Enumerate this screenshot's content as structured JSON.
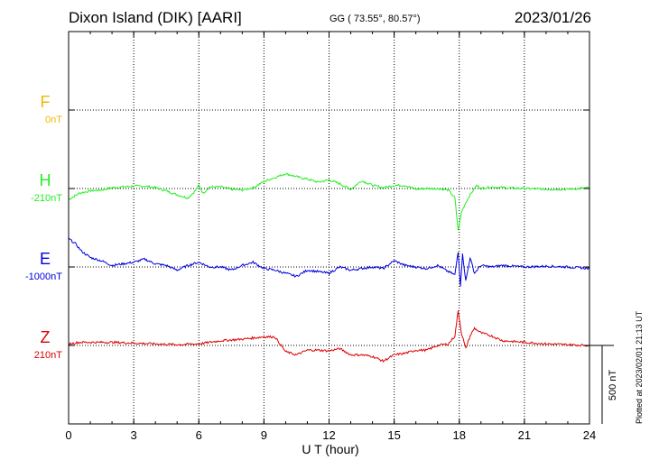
{
  "header": {
    "title": "Dixon Island (DIK)  [AARI]",
    "coordinates": "GG ( 73.55°,  80.57°)",
    "date": "2023/01/26"
  },
  "footer": {
    "plotted": "Plotted at 2023/02/01 21:13 UT"
  },
  "chart_data": {
    "type": "line",
    "xlabel": "U T (hour)",
    "xlim": [
      0,
      24
    ],
    "xticks": [
      "0",
      "3",
      "6",
      "9",
      "12",
      "15",
      "18",
      "21",
      "24"
    ],
    "ylim_nT": [
      -2,
      2
    ],
    "grid": true,
    "scale_bar": {
      "label": "500 nT",
      "value": 500
    },
    "series": [
      {
        "name": "F",
        "baseline_label": "0nT",
        "color": "#f2b705",
        "values": []
      },
      {
        "name": "H",
        "baseline_label": "-210nT",
        "color": "#22ee22",
        "x": [
          0,
          0.5,
          1,
          1.5,
          2,
          2.5,
          3,
          3.5,
          4,
          4.5,
          5,
          5.5,
          5.8,
          6,
          6.2,
          6.5,
          7,
          7.5,
          8,
          8.5,
          9,
          9.5,
          10,
          10.5,
          11,
          11.5,
          12,
          12.5,
          13,
          13.5,
          14,
          14.5,
          15,
          15.5,
          16,
          16.5,
          17,
          17.5,
          17.8,
          17.95,
          18.1,
          18.3,
          18.5,
          18.8,
          19,
          19.5,
          20,
          21,
          22,
          23,
          24
        ],
        "values": [
          -70,
          -30,
          -15,
          -10,
          5,
          10,
          15,
          15,
          5,
          -15,
          -40,
          -60,
          -20,
          20,
          -30,
          10,
          10,
          -5,
          -10,
          5,
          45,
          70,
          95,
          75,
          60,
          40,
          55,
          30,
          -5,
          50,
          20,
          5,
          20,
          20,
          -5,
          0,
          0,
          -10,
          -60,
          -270,
          -150,
          -90,
          -40,
          20,
          0,
          10,
          5,
          0,
          -5,
          -5,
          5
        ]
      },
      {
        "name": "E",
        "baseline_label": "-1000nT",
        "color": "#0000dd",
        "x": [
          0,
          0.3,
          0.6,
          1,
          1.5,
          2,
          2.5,
          3,
          3.5,
          4,
          4.5,
          5,
          5.5,
          6,
          6.5,
          7,
          7.5,
          8,
          8.5,
          9,
          9.5,
          10,
          10.5,
          11,
          11.5,
          12,
          12.5,
          13,
          13.5,
          14,
          14.5,
          15,
          15.5,
          16,
          16.5,
          17,
          17.5,
          17.8,
          17.95,
          18.05,
          18.15,
          18.3,
          18.5,
          18.7,
          19,
          19.5,
          20,
          21,
          22,
          23,
          24
        ],
        "values": [
          180,
          150,
          100,
          60,
          40,
          10,
          20,
          30,
          50,
          20,
          10,
          -20,
          10,
          30,
          0,
          0,
          -20,
          10,
          30,
          -10,
          -20,
          -40,
          -60,
          -20,
          -30,
          -40,
          0,
          -20,
          -10,
          0,
          -10,
          40,
          10,
          0,
          -10,
          10,
          -30,
          -50,
          100,
          -120,
          80,
          -90,
          60,
          -40,
          10,
          0,
          10,
          0,
          5,
          0,
          -10
        ]
      },
      {
        "name": "Z",
        "baseline_label": "210nT",
        "color": "#dd0000",
        "x": [
          0,
          0.5,
          1,
          2,
          3,
          4,
          5,
          6,
          7,
          8,
          9,
          9.5,
          10,
          10.5,
          11,
          11.5,
          12,
          12.5,
          13,
          13.5,
          14,
          14.5,
          15,
          15.5,
          16,
          16.5,
          17,
          17.5,
          17.8,
          17.95,
          18.1,
          18.3,
          18.5,
          18.7,
          19,
          19.5,
          20,
          21,
          22,
          23,
          24
        ],
        "values": [
          10,
          20,
          20,
          20,
          15,
          10,
          5,
          10,
          30,
          40,
          55,
          55,
          -40,
          -60,
          -30,
          -30,
          -35,
          -20,
          -60,
          -60,
          -70,
          -100,
          -60,
          -50,
          -30,
          -30,
          0,
          10,
          60,
          220,
          80,
          -20,
          60,
          110,
          80,
          60,
          30,
          20,
          10,
          5,
          0
        ]
      }
    ]
  }
}
